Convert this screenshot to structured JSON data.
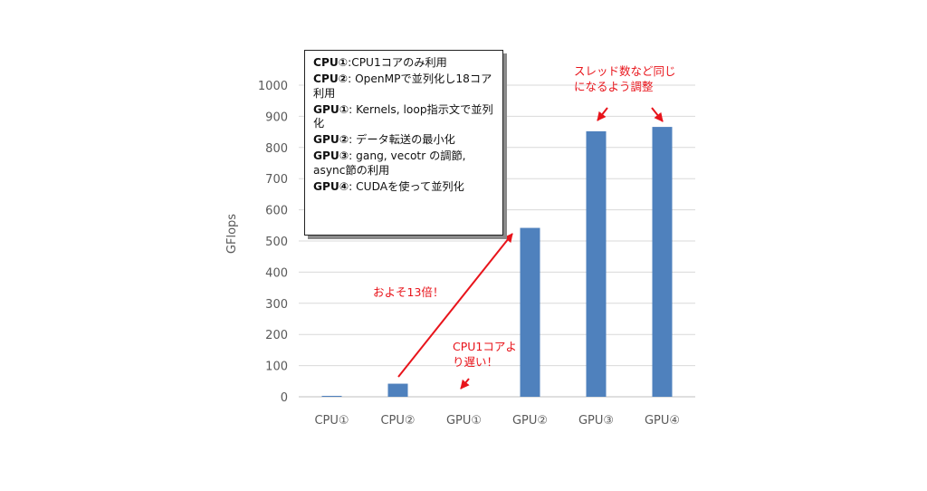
{
  "chart_data": {
    "type": "bar",
    "categories": [
      "CPU①",
      "CPU②",
      "GPU①",
      "GPU②",
      "GPU③",
      "GPU④"
    ],
    "values": [
      3,
      42,
      0,
      542,
      852,
      866
    ],
    "ylabel": "GFlops",
    "xlabel": "",
    "ylim": [
      0,
      1000
    ],
    "yticks": [
      0,
      100,
      200,
      300,
      400,
      500,
      600,
      700,
      800,
      900,
      1000
    ],
    "grid": true,
    "bar_color": "#4f81bd"
  },
  "legend": {
    "items": [
      {
        "key": "CPU①",
        "text": ":CPU1コアのみ利用"
      },
      {
        "key": "CPU②",
        "text": ": OpenMPで並列化し18コア利用"
      },
      {
        "key": "GPU①",
        "text": ": Kernels, loop指示文で並列化"
      },
      {
        "key": "GPU②",
        "text": ": データ転送の最小化"
      },
      {
        "key": "GPU③",
        "text": ": gang, vecotr の調節, async節の利用"
      },
      {
        "key": "GPU④",
        "text": ": CUDAを使って並列化"
      }
    ]
  },
  "annotations": {
    "speedup": "およそ13倍！",
    "slower": [
      "CPU1コアよ",
      "り遅い！"
    ],
    "threads": [
      "スレッド数など同じ",
      "になるよう調整"
    ]
  },
  "annotation_color": "#e8141b"
}
